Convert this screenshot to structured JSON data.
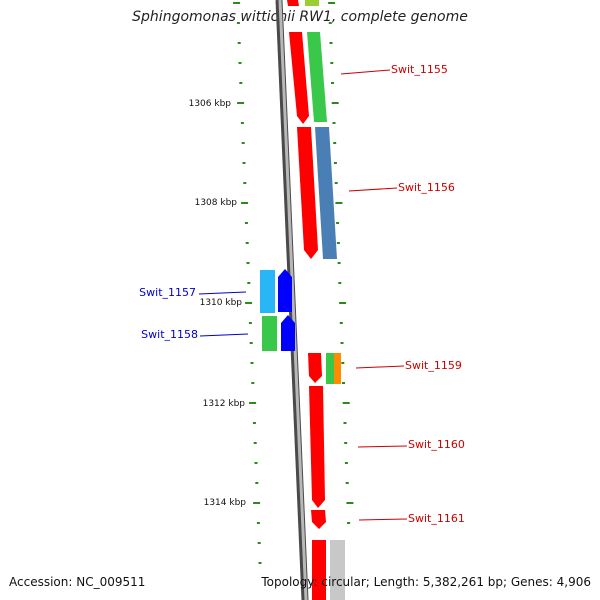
{
  "title": "Sphingomonas wittichii RW1, complete genome",
  "footer": {
    "accession": "Accession: NC_009511",
    "stats": "Topology: circular; Length: 5,382,261 bp; Genes: 4,906"
  },
  "colors": {
    "label_forward": "#cc0000",
    "label_reverse": "#0000cc",
    "tick": "#2a8a1a",
    "backbone": "#8a8a8a"
  },
  "tick_labels": [
    "1306 kbp",
    "1308 kbp",
    "1310 kbp",
    "1312 kbp",
    "1314 kbp"
  ],
  "genes": [
    {
      "label": "Swit_1155",
      "strand": "forward"
    },
    {
      "label": "Swit_1156",
      "strand": "forward"
    },
    {
      "label": "Swit_1157",
      "strand": "reverse"
    },
    {
      "label": "Swit_1158",
      "strand": "reverse"
    },
    {
      "label": "Swit_1159",
      "strand": "forward"
    },
    {
      "label": "Swit_1160",
      "strand": "forward"
    },
    {
      "label": "Swit_1161",
      "strand": "forward"
    }
  ]
}
